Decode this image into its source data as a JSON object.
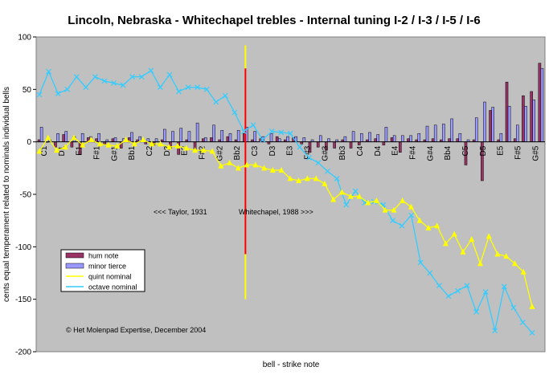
{
  "chart_data": {
    "type": "bar",
    "title": "Lincoln, Nebraska - Whitechapel trebles - Internal tuning I-2 / I-3 / I-5 / I-6",
    "xlabel": "bell - strike note",
    "ylabel": "cents equal temperament related to nominals individual bells",
    "ylim": [
      -200,
      100
    ],
    "yticks": [
      100,
      50,
      0,
      -50,
      -100,
      -150,
      -200
    ],
    "grid": false,
    "background": "#c0c0c0",
    "x_tick_labels": [
      "C1",
      "D1",
      "E1",
      "F#1",
      "G#1",
      "Bb1",
      "C2",
      "D2",
      "E2",
      "F#2",
      "G#2",
      "Bb2",
      "C3",
      "D3",
      "E3",
      "F#3",
      "G#3",
      "Bb3",
      "C4",
      "D4",
      "E4",
      "F#4",
      "G#4",
      "Bb4",
      "C5",
      "D5",
      "E5",
      "F#5",
      "G#5"
    ],
    "annotations": {
      "left": "<<< Taylor, 1931",
      "right": "Whitechapel, 1988 >>>",
      "credit": "© Het Molenpad Expertise, December 2004"
    },
    "divider": {
      "index": 25.5,
      "colors": [
        "#ffff00",
        "#ff0000",
        "#ffff00"
      ],
      "range": [
        -150,
        92
      ]
    },
    "legend": {
      "placement": "bottom-left",
      "entries": [
        "hum note",
        "minor tierce",
        "quint nominal",
        "octave nominal"
      ]
    },
    "colors": {
      "hum": "#993366",
      "minor": "#9999ff",
      "quint": "#ffff00",
      "octave": "#33ccff",
      "divider": "#ff0000"
    },
    "series": [
      {
        "name": "hum note",
        "values": [
          2,
          0,
          -5,
          7,
          -5,
          -12,
          4,
          3,
          -2,
          3,
          -6,
          4,
          2,
          -2,
          -3,
          2,
          -6,
          -12,
          2,
          -8,
          3,
          4,
          2,
          5,
          2,
          8,
          2,
          3,
          -2,
          5,
          2,
          4,
          -2,
          -10,
          -5,
          -8,
          -6,
          2,
          -6,
          -3,
          2,
          3,
          -3,
          4,
          -10,
          3,
          2,
          2,
          3,
          2,
          3,
          3,
          -22,
          2,
          -37,
          30,
          2,
          57,
          3,
          44,
          48,
          75
        ]
      },
      {
        "name": "minor tierce",
        "values": [
          14,
          2,
          8,
          10,
          5,
          8,
          5,
          8,
          2,
          4,
          3,
          9,
          5,
          3,
          3,
          12,
          10,
          13,
          10,
          18,
          4,
          16,
          11,
          8,
          11,
          14,
          10,
          5,
          8,
          3,
          5,
          5,
          4,
          2,
          6,
          3,
          2,
          5,
          10,
          8,
          9,
          7,
          14,
          6,
          6,
          6,
          8,
          15,
          16,
          17,
          22,
          8,
          2,
          23,
          38,
          33,
          8,
          34,
          16,
          34,
          40,
          70
        ]
      },
      {
        "name": "quint nominal",
        "values": [
          -9,
          4,
          -8,
          -5,
          4,
          -3,
          2,
          -2,
          -3,
          -4,
          2,
          -2,
          2,
          -2,
          -2,
          -5,
          -4,
          -6,
          -8,
          -8,
          -9,
          -23,
          -20,
          -25,
          -22,
          -22,
          -25,
          -27,
          -27,
          -35,
          -37,
          -35,
          -35,
          -40,
          -55,
          -48,
          -52,
          -52,
          -58,
          -56,
          -65,
          -65,
          -56,
          -62,
          -75,
          -82,
          -80,
          -97,
          -88,
          -105,
          -93,
          -116,
          -90,
          -107,
          -109,
          -116,
          -124,
          -157
        ]
      },
      {
        "name": "octave nominal",
        "values": [
          45,
          67,
          46,
          50,
          62,
          52,
          62,
          58,
          56,
          54,
          62,
          62,
          68,
          52,
          64,
          48,
          52,
          52,
          50,
          38,
          44,
          28,
          10,
          16,
          2,
          10,
          9,
          8,
          -5,
          -15,
          -20,
          -28,
          -35,
          -60,
          -47,
          -58,
          -57,
          -60,
          -75,
          -80,
          -70,
          -115,
          -125,
          -137,
          -147,
          -142,
          -137,
          -162,
          -143,
          -180,
          -138,
          -158,
          -172,
          -182
        ]
      }
    ]
  }
}
